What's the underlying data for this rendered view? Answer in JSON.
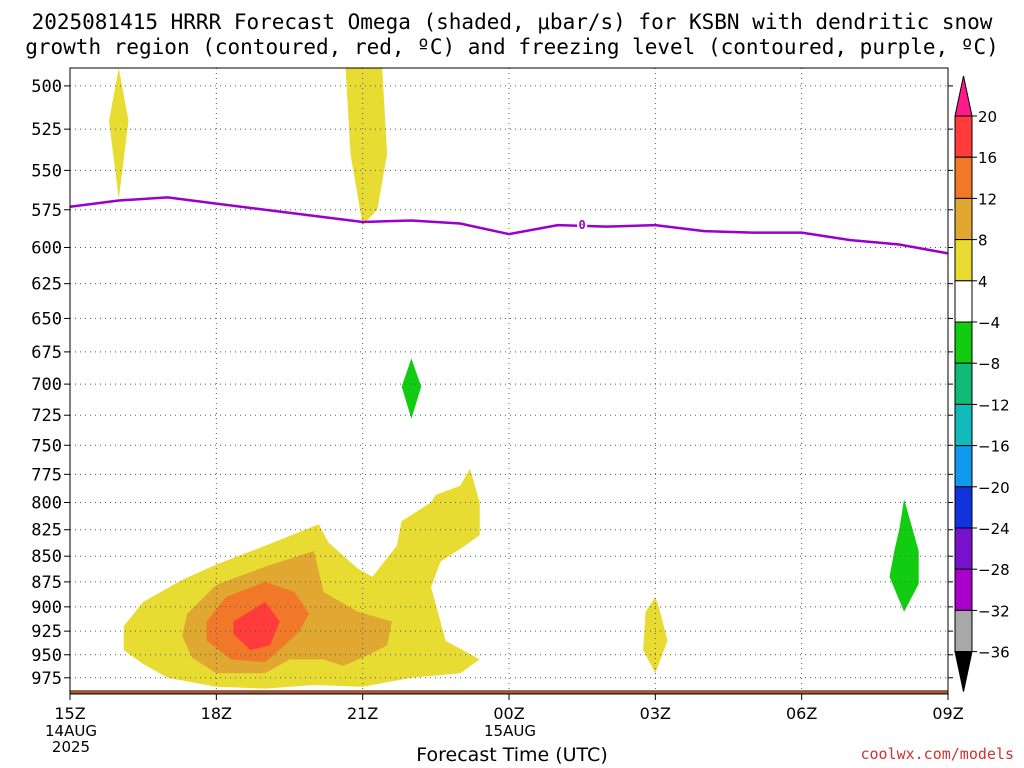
{
  "title": {
    "line1": "2025081415 HRRR Forecast Omega (shaded, μbar/s) for KSBN with dendritic snow",
    "line2": "growth region (contoured, red, ºC) and freezing level (contoured, purple, ºC)"
  },
  "credit": "coolwx.com/models",
  "chart_data": {
    "type": "heatmap",
    "title": "2025081415 HRRR Forecast Omega (shaded, μbar/s) for KSBN with dendritic snow growth region (contoured, red, ºC) and freezing level (contoured, purple, ºC)",
    "xlabel": "Forecast Time (UTC)",
    "ylabel": "",
    "x_ticks": [
      {
        "hours": 0,
        "label": "15Z",
        "sub": [
          "14AUG",
          "2025"
        ]
      },
      {
        "hours": 3,
        "label": "18Z",
        "sub": []
      },
      {
        "hours": 6,
        "label": "21Z",
        "sub": []
      },
      {
        "hours": 9,
        "label": "00Z",
        "sub": [
          "15AUG"
        ]
      },
      {
        "hours": 12,
        "label": "03Z",
        "sub": []
      },
      {
        "hours": 15,
        "label": "06Z",
        "sub": []
      },
      {
        "hours": 18,
        "label": "09Z",
        "sub": []
      }
    ],
    "xlim": [
      0,
      18
    ],
    "y_ticks": [
      500,
      525,
      550,
      575,
      600,
      625,
      650,
      675,
      700,
      725,
      750,
      775,
      800,
      825,
      850,
      875,
      900,
      925,
      950,
      975
    ],
    "ylim": [
      490,
      993
    ],
    "y_scale": "log-pressure",
    "grid": true,
    "colorbar": {
      "ticks": [
        "20",
        "16",
        "12",
        "8",
        "4",
        "−4",
        "−8",
        "−12",
        "−16",
        "−20",
        "−24",
        "−28",
        "−32",
        "−36"
      ],
      "colors": [
        "#ff1a8c",
        "#ff3b3b",
        "#f07828",
        "#e0a830",
        "#e8dc32",
        "#ffffff",
        "#11cc11",
        "#11bb77",
        "#11bbbb",
        "#1199ee",
        "#1133dd",
        "#7711cc",
        "#aa00cc",
        "#a8a8a8",
        "#000000"
      ]
    },
    "omega_shading": [
      {
        "name": "omega 4-8",
        "color": "#e8dc32",
        "polygons": [
          [
            [
              1.0,
              490
            ],
            [
              1.2,
              520
            ],
            [
              1.0,
              568
            ],
            [
              0.8,
              520
            ]
          ],
          [
            [
              5.65,
              490
            ],
            [
              6.4,
              490
            ],
            [
              6.5,
              540
            ],
            [
              6.3,
              575
            ],
            [
              6.0,
              585
            ],
            [
              5.75,
              540
            ]
          ],
          [
            [
              1.1,
              920
            ],
            [
              1.5,
              895
            ],
            [
              2.3,
              873
            ],
            [
              3.0,
              858
            ],
            [
              4.0,
              840
            ],
            [
              5.1,
              820
            ],
            [
              5.3,
              837
            ],
            [
              5.9,
              862
            ],
            [
              6.2,
              870
            ],
            [
              6.7,
              840
            ],
            [
              6.8,
              817
            ],
            [
              7.4,
              800
            ],
            [
              7.5,
              793
            ],
            [
              8.0,
              785
            ],
            [
              8.2,
              770
            ],
            [
              8.4,
              800
            ],
            [
              8.4,
              830
            ],
            [
              8.1,
              840
            ],
            [
              7.6,
              855
            ],
            [
              7.4,
              880
            ],
            [
              7.7,
              935
            ],
            [
              8.4,
              955
            ],
            [
              8.0,
              970
            ],
            [
              7.0,
              975
            ],
            [
              6.0,
              985
            ],
            [
              5.0,
              983
            ],
            [
              4.0,
              987
            ],
            [
              3.0,
              985
            ],
            [
              2.0,
              975
            ],
            [
              1.5,
              960
            ],
            [
              1.1,
              945
            ]
          ],
          [
            [
              11.8,
              905
            ],
            [
              12.0,
              890
            ],
            [
              12.1,
              905
            ],
            [
              12.25,
              935
            ],
            [
              12.0,
              970
            ],
            [
              11.75,
              945
            ]
          ]
        ]
      },
      {
        "name": "omega 8-12",
        "color": "#e0a830",
        "polygons": [
          [
            [
              2.4,
              907
            ],
            [
              3.0,
              878
            ],
            [
              4.0,
              860
            ],
            [
              5.0,
              845
            ],
            [
              5.2,
              885
            ],
            [
              5.9,
              905
            ],
            [
              6.6,
              915
            ],
            [
              6.5,
              940
            ],
            [
              6.0,
              953
            ],
            [
              5.6,
              962
            ],
            [
              5.2,
              955
            ],
            [
              4.5,
              955
            ],
            [
              4.0,
              970
            ],
            [
              3.0,
              970
            ],
            [
              2.5,
              953
            ],
            [
              2.3,
              930
            ]
          ]
        ]
      },
      {
        "name": "omega 12-16",
        "color": "#f07828",
        "polygons": [
          [
            [
              2.8,
              915
            ],
            [
              3.2,
              890
            ],
            [
              4.0,
              875
            ],
            [
              4.6,
              885
            ],
            [
              4.9,
              907
            ],
            [
              4.7,
              925
            ],
            [
              4.4,
              940
            ],
            [
              4.0,
              958
            ],
            [
              3.3,
              955
            ],
            [
              2.8,
              935
            ]
          ]
        ]
      },
      {
        "name": "omega 16-20",
        "color": "#ff3b3b",
        "polygons": [
          [
            [
              3.35,
              915
            ],
            [
              4.0,
              895
            ],
            [
              4.3,
              915
            ],
            [
              4.1,
              940
            ],
            [
              3.7,
              945
            ],
            [
              3.35,
              928
            ]
          ]
        ]
      },
      {
        "name": "omega -4 to -8",
        "color": "#11cc11",
        "polygons": [
          [
            [
              6.8,
              702
            ],
            [
              7.0,
              680
            ],
            [
              7.2,
              702
            ],
            [
              7.0,
              728
            ]
          ],
          [
            [
              17.0,
              825
            ],
            [
              17.1,
              797
            ],
            [
              17.4,
              845
            ],
            [
              17.4,
              877
            ],
            [
              17.1,
              905
            ],
            [
              16.8,
              870
            ],
            [
              16.9,
              845
            ]
          ]
        ]
      }
    ],
    "freezing_level": {
      "label": "0",
      "color": "#9900cc",
      "x": [
        0,
        1,
        2,
        3,
        4,
        5,
        6,
        7,
        8,
        9,
        10,
        11,
        12,
        13,
        14,
        15,
        16,
        17,
        18
      ],
      "y": [
        573,
        569,
        567,
        571,
        575,
        579,
        583,
        582,
        584,
        591,
        585,
        586,
        585,
        589,
        590,
        590,
        595,
        598,
        604
      ]
    },
    "ground": {
      "color": "#9a5a3a",
      "y": 992
    }
  }
}
